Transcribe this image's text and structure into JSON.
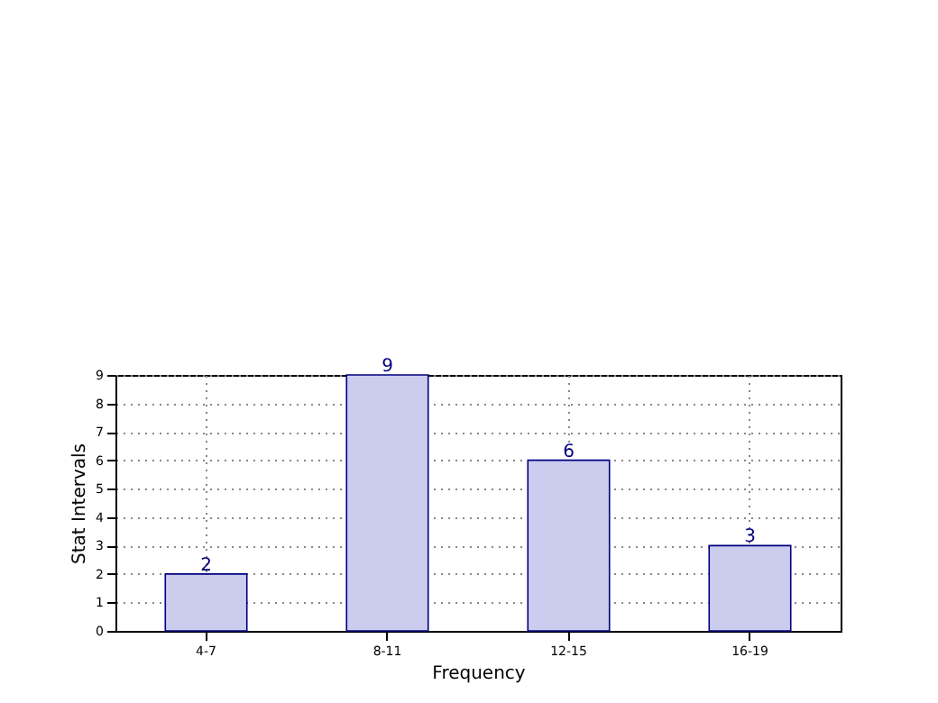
{
  "chart_data": {
    "type": "bar",
    "xlabel": "Frequency",
    "ylabel": "Stat Intervals",
    "categories": [
      "4-7",
      "8-11",
      "12-15",
      "16-19"
    ],
    "values": [
      2,
      9,
      6,
      3
    ],
    "color": "#ccccee",
    "ylim": [
      0,
      9
    ],
    "yticks": [
      0,
      1,
      2,
      3,
      4,
      5,
      6,
      7,
      8,
      9
    ],
    "grid": true,
    "data_labels": true
  }
}
